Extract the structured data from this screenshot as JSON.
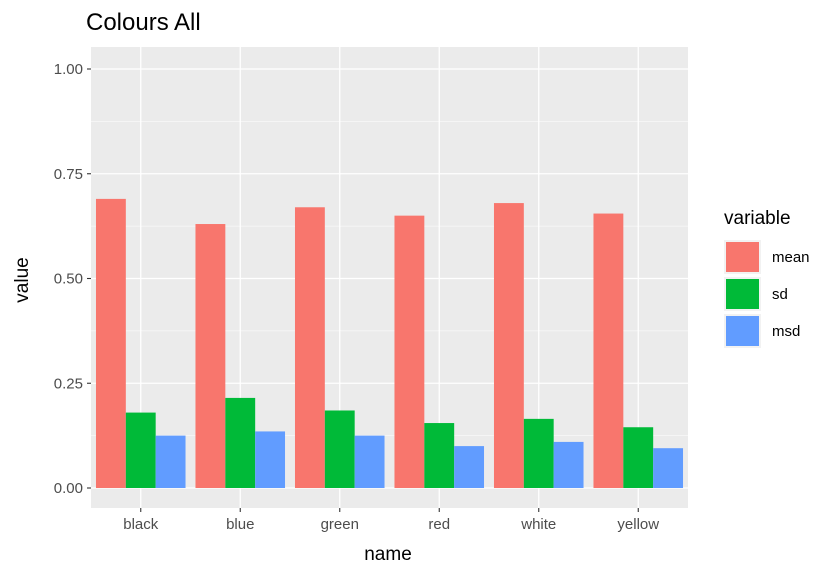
{
  "chart_data": {
    "type": "bar",
    "title": "Colours All",
    "xlabel": "name",
    "ylabel": "value",
    "categories": [
      "black",
      "blue",
      "green",
      "red",
      "white",
      "yellow"
    ],
    "series": [
      {
        "name": "mean",
        "color": "#F8766D",
        "values": [
          0.69,
          0.63,
          0.67,
          0.65,
          0.68,
          0.655
        ]
      },
      {
        "name": "sd",
        "color": "#00BA38",
        "values": [
          0.18,
          0.215,
          0.185,
          0.155,
          0.165,
          0.145
        ]
      },
      {
        "name": "msd",
        "color": "#619CFF",
        "values": [
          0.125,
          0.135,
          0.125,
          0.1,
          0.11,
          0.095
        ]
      }
    ],
    "ylim": [
      0,
      1.0
    ],
    "yticks": [
      "0.00",
      "0.25",
      "0.50",
      "0.75",
      "1.00"
    ],
    "legend_title": "variable",
    "legend_position": "right",
    "grid": true,
    "panel_background": "#EBEBEB"
  }
}
